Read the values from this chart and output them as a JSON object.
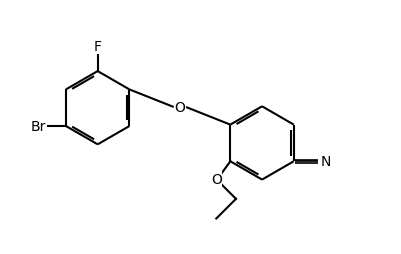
{
  "background_color": "#ffffff",
  "line_color": "#000000",
  "line_width": 1.5,
  "font_size": 10,
  "fig_width": 4.02,
  "fig_height": 2.55,
  "dpi": 100,
  "xlim": [
    0.0,
    8.5
  ],
  "ylim": [
    0.3,
    5.5
  ]
}
